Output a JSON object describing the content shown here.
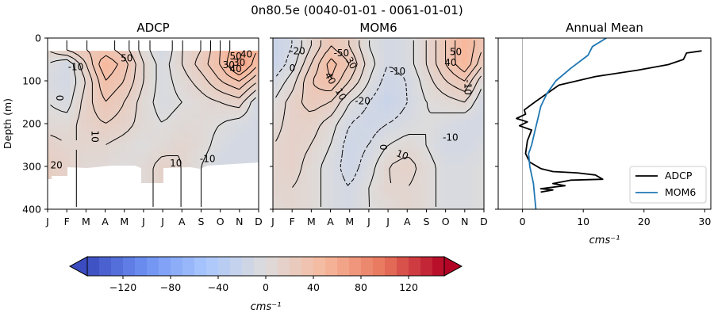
{
  "suptitle": "0n80.5e (0040-01-01 - 0061-01-01)",
  "colors": {
    "adcp_line": "#000000",
    "mom6_line": "#1f77b4",
    "cmap": [
      "#3b4cc0",
      "#6f92f3",
      "#aac7fd",
      "#dddcdc",
      "#f7b89c",
      "#e7745b",
      "#b40426"
    ]
  },
  "chart_data": [
    {
      "type": "heatmap",
      "title": "ADCP",
      "ylabel": "Depth (m)",
      "months": [
        "J",
        "F",
        "M",
        "A",
        "M",
        "J",
        "J",
        "A",
        "S",
        "O",
        "N",
        "D"
      ],
      "yticks": [
        "0",
        "100",
        "200",
        "300",
        "400"
      ],
      "ylim": [
        400,
        0
      ],
      "month_centers": [
        1,
        2,
        3,
        4,
        5,
        6,
        7,
        8,
        9,
        10,
        11,
        12
      ],
      "depths": [
        30,
        60,
        100,
        150,
        200,
        250,
        300
      ],
      "values": [
        [
          10,
          20,
          30,
          35,
          25,
          5,
          -10,
          10,
          20,
          40,
          60,
          50
        ],
        [
          0,
          -10,
          20,
          50,
          35,
          10,
          -5,
          10,
          25,
          40,
          70,
          40
        ],
        [
          -5,
          -10,
          10,
          40,
          30,
          10,
          -5,
          5,
          15,
          30,
          40,
          20
        ],
        [
          0,
          -5,
          15,
          30,
          20,
          5,
          -5,
          0,
          5,
          10,
          15,
          -10
        ],
        [
          5,
          5,
          15,
          20,
          15,
          5,
          0,
          5,
          5,
          0,
          -5,
          -10
        ],
        [
          15,
          10,
          10,
          10,
          5,
          0,
          5,
          10,
          5,
          -5,
          -10,
          -10
        ],
        [
          20,
          15,
          5,
          5,
          0,
          5,
          15,
          10,
          0,
          -10,
          -10,
          -10
        ]
      ],
      "contour_labels": [
        "50",
        "40",
        "30",
        "50",
        "40",
        "30",
        "-10",
        "0",
        "10",
        "-10",
        "-10",
        "20",
        "10",
        "-10"
      ]
    },
    {
      "type": "heatmap",
      "title": "MOM6",
      "months": [
        "J",
        "F",
        "M",
        "A",
        "M",
        "J",
        "J",
        "A",
        "S",
        "O",
        "N",
        "D"
      ],
      "ylim": [
        400,
        0
      ],
      "month_centers": [
        1,
        2,
        3,
        4,
        5,
        6,
        7,
        8,
        9,
        10,
        11,
        12
      ],
      "depths": [
        20,
        60,
        100,
        150,
        200,
        250,
        300,
        350,
        400
      ],
      "values": [
        [
          -20,
          -10,
          10,
          30,
          20,
          0,
          -10,
          -5,
          10,
          30,
          50,
          30
        ],
        [
          -20,
          -5,
          20,
          45,
          30,
          5,
          -10,
          -5,
          10,
          30,
          50,
          20
        ],
        [
          -10,
          5,
          30,
          40,
          20,
          0,
          -15,
          -10,
          5,
          20,
          30,
          0
        ],
        [
          0,
          15,
          25,
          20,
          0,
          -10,
          -20,
          -10,
          0,
          5,
          10,
          -10
        ],
        [
          5,
          15,
          15,
          5,
          -10,
          -15,
          -10,
          -5,
          0,
          -5,
          -10,
          -10
        ],
        [
          10,
          15,
          10,
          0,
          -15,
          -10,
          0,
          5,
          0,
          -10,
          -10,
          -5
        ],
        [
          10,
          15,
          5,
          -5,
          -15,
          -5,
          10,
          15,
          5,
          -5,
          -5,
          0
        ],
        [
          10,
          10,
          5,
          -5,
          -10,
          0,
          10,
          10,
          5,
          -5,
          -5,
          0
        ],
        [
          5,
          10,
          5,
          -5,
          -10,
          0,
          5,
          10,
          5,
          -5,
          -5,
          0
        ]
      ],
      "contour_labels": [
        "-20",
        "0",
        "-50",
        "40",
        "30",
        "-10",
        "-20",
        "10",
        "0",
        "50",
        "40",
        "-10",
        "-10",
        "10"
      ]
    },
    {
      "type": "line",
      "title": "Annual Mean",
      "xlabel": "cms⁻¹",
      "xlim": [
        -4,
        31
      ],
      "ylim": [
        400,
        0
      ],
      "xticks": [
        "0",
        "10",
        "20",
        "30"
      ],
      "legend_position": "lower-right",
      "series": [
        {
          "name": "ADCP",
          "x": [
            29.5,
            27,
            26.5,
            24,
            19,
            12,
            6,
            2,
            0.3,
            0.5,
            -1,
            0.8,
            -0.5,
            1.5,
            0.8,
            0.5,
            1.2,
            3,
            5,
            9,
            12,
            13.2,
            8,
            5,
            7,
            3,
            5,
            3
          ],
          "y": [
            30,
            35,
            50,
            62,
            75,
            90,
            110,
            150,
            168,
            178,
            188,
            196,
            205,
            215,
            240,
            270,
            290,
            305,
            312,
            315,
            320,
            330,
            332,
            340,
            345,
            352,
            355,
            360
          ]
        },
        {
          "name": "MOM6",
          "x": [
            13.8,
            11.5,
            10.8,
            8,
            5.5,
            4,
            3,
            2.5,
            2,
            1.5,
            1,
            1.2,
            1.8,
            2,
            2.2
          ],
          "y": [
            0,
            20,
            40,
            70,
            100,
            130,
            160,
            190,
            220,
            250,
            270,
            300,
            340,
            370,
            400
          ]
        }
      ]
    },
    {
      "type": "colorbar",
      "label": "cms⁻¹",
      "range": [
        -150,
        150
      ],
      "ticks": [
        "-120",
        "-80",
        "-40",
        "0",
        "40",
        "80",
        "120"
      ],
      "tick_values": [
        -120,
        -80,
        -40,
        0,
        40,
        80,
        120
      ]
    }
  ]
}
